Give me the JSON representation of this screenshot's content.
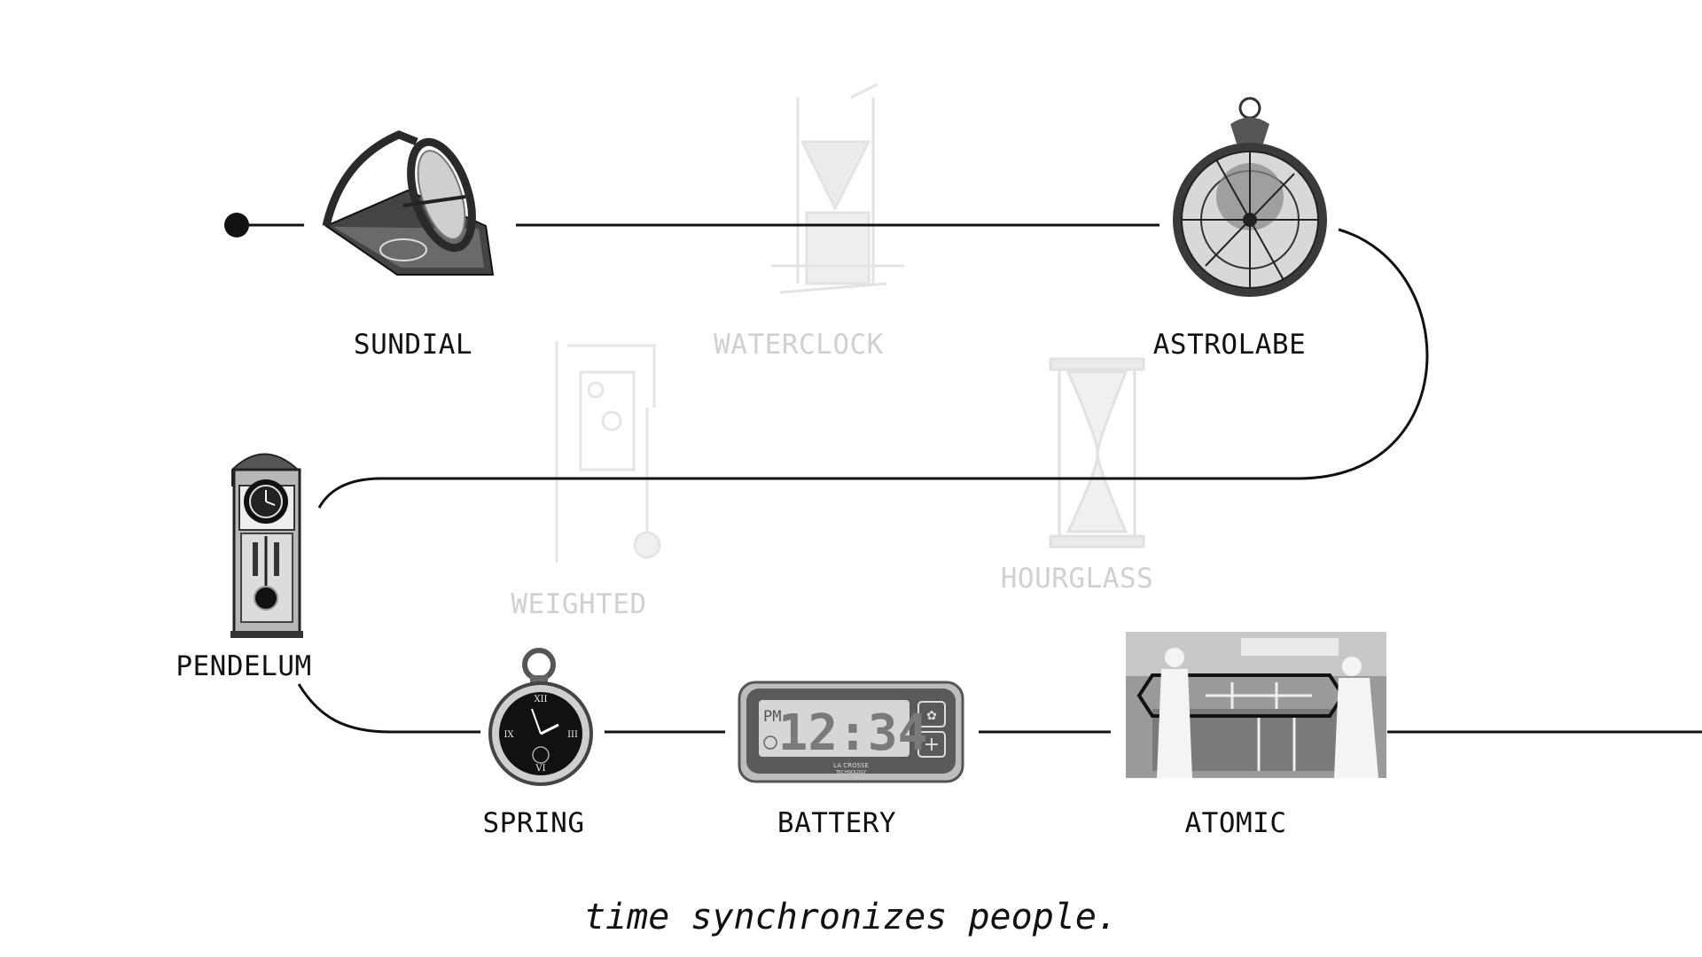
{
  "timeline": {
    "start_marker": "start-dot",
    "eras": [
      {
        "id": "sundial",
        "label": "SUNDIAL",
        "active": true,
        "icon": "sundial-icon"
      },
      {
        "id": "waterclock",
        "label": "WATERCLOCK",
        "active": false,
        "icon": "waterclock-icon"
      },
      {
        "id": "astrolabe",
        "label": "ASTROLABE",
        "active": true,
        "icon": "astrolabe-icon"
      },
      {
        "id": "hourglass",
        "label": "HOURGLASS",
        "active": false,
        "icon": "hourglass-icon"
      },
      {
        "id": "weighted",
        "label": "WEIGHTED",
        "active": false,
        "icon": "weighted-clock-icon"
      },
      {
        "id": "pendelum",
        "label": "PENDELUM",
        "active": true,
        "icon": "pendulum-clock-icon"
      },
      {
        "id": "spring",
        "label": "SPRING",
        "active": true,
        "icon": "pocket-watch-icon"
      },
      {
        "id": "battery",
        "label": "BATTERY",
        "active": true,
        "icon": "digital-clock-icon"
      },
      {
        "id": "atomic",
        "label": "ATOMIC",
        "active": true,
        "icon": "atomic-clock-icon"
      }
    ]
  },
  "battery_clock": {
    "display_time": "12:34",
    "meridiem": "PM",
    "brand_line1": "LA CROSSE",
    "brand_line2": "TECHNOLOGY"
  },
  "tagline": "time synchronizes people.",
  "colors": {
    "line": "#111111",
    "faded_text": "#d0d0d0",
    "background": "#ffffff"
  }
}
